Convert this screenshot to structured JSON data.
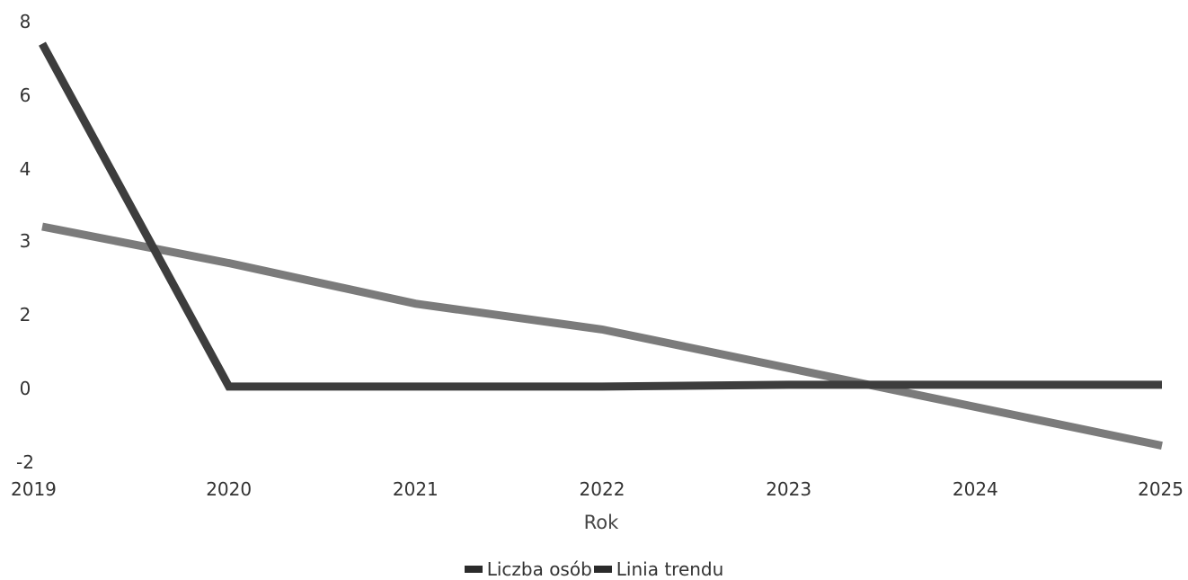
{
  "chart_data": {
    "type": "line",
    "categories": [
      "2019",
      "2020",
      "2021",
      "2022",
      "2023",
      "2024",
      "2025"
    ],
    "y_tick_labels": [
      {
        "value": 8,
        "label": "8"
      },
      {
        "value": 6,
        "label": "6"
      },
      {
        "value": 4,
        "label": "4"
      },
      {
        "value": 3,
        "label": "3"
      },
      {
        "value": 2,
        "label": "2"
      },
      {
        "value": 0,
        "label": "0"
      },
      {
        "value": -2,
        "label": "-2"
      }
    ],
    "xlabel": "Rok",
    "ylabel": "",
    "ylim": [
      -2,
      8
    ],
    "grid": false,
    "legend_position": "bottom",
    "series": [
      {
        "name": "Liczba osób",
        "color": "#3d3d3d",
        "values": [
          7.4,
          0.05,
          0.05,
          0.05,
          0.1,
          0.1,
          0.1
        ]
      },
      {
        "name": "Linia trendu",
        "color": "#7b7b7b",
        "values": [
          3.2,
          2.7,
          2.15,
          1.6,
          0.55,
          -0.5,
          -1.55
        ]
      }
    ]
  }
}
